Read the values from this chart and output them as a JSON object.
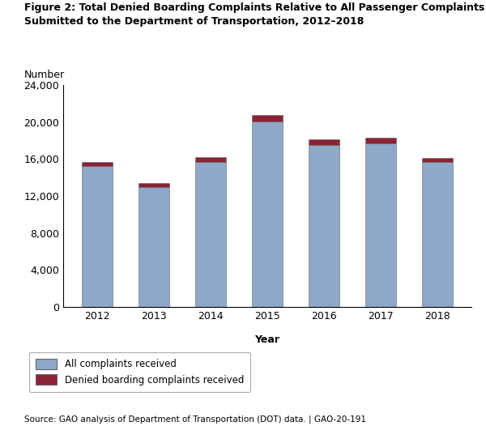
{
  "title": "Figure 2: Total Denied Boarding Complaints Relative to All Passenger Complaints\nSubmitted to the Department of Transportation, 2012–2018",
  "number_label": "Number",
  "xlabel": "Year",
  "years": [
    2012,
    2013,
    2014,
    2015,
    2016,
    2017,
    2018
  ],
  "all_complaints": [
    15200,
    13000,
    15700,
    20100,
    17500,
    17700,
    15700
  ],
  "denied_boarding": [
    500,
    400,
    500,
    700,
    600,
    600,
    400
  ],
  "color_all": "#8fa8c8",
  "color_denied": "#8b2335",
  "bar_edge_color": "#666666",
  "bar_edge_width": 0.4,
  "ylim": [
    0,
    24000
  ],
  "yticks": [
    0,
    4000,
    8000,
    12000,
    16000,
    20000,
    24000
  ],
  "ytick_labels": [
    "0",
    "4,000",
    "8,000",
    "12,000",
    "16,000",
    "20,000",
    "24,000"
  ],
  "legend_label_all": "All complaints received",
  "legend_label_denied": "Denied boarding complaints received",
  "source_text": "Source: GAO analysis of Department of Transportation (DOT) data. | GAO-20-191",
  "background_color": "#ffffff",
  "bar_width": 0.55
}
